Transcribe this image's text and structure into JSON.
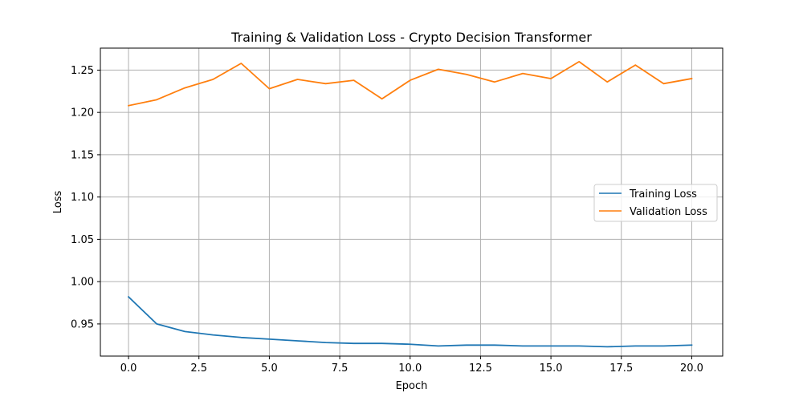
{
  "chart_data": {
    "type": "line",
    "title": "Training & Validation Loss - Crypto Decision Transformer",
    "xlabel": "Epoch",
    "ylabel": "Loss",
    "xlim": [
      -1,
      21.1
    ],
    "ylim": [
      0.912,
      1.276
    ],
    "grid": true,
    "legend_position": "center-right",
    "x_ticks": [
      0.0,
      2.5,
      5.0,
      7.5,
      10.0,
      12.5,
      15.0,
      17.5,
      20.0
    ],
    "x_tick_labels": [
      "0.0",
      "2.5",
      "5.0",
      "7.5",
      "10.0",
      "12.5",
      "15.0",
      "17.5",
      "20.0"
    ],
    "y_ticks": [
      0.95,
      1.0,
      1.05,
      1.1,
      1.15,
      1.2,
      1.25
    ],
    "y_tick_labels": [
      "0.95",
      "1.00",
      "1.05",
      "1.10",
      "1.15",
      "1.20",
      "1.25"
    ],
    "x": [
      0,
      1,
      2,
      3,
      4,
      5,
      6,
      7,
      8,
      9,
      10,
      11,
      12,
      13,
      14,
      15,
      16,
      17,
      18,
      19,
      20
    ],
    "series": [
      {
        "name": "Training Loss",
        "color": "#1f77b4",
        "values": [
          0.982,
          0.95,
          0.941,
          0.937,
          0.934,
          0.932,
          0.93,
          0.928,
          0.927,
          0.927,
          0.926,
          0.924,
          0.925,
          0.925,
          0.924,
          0.924,
          0.924,
          0.923,
          0.924,
          0.924,
          0.925
        ]
      },
      {
        "name": "Validation Loss",
        "color": "#ff7f0e",
        "values": [
          1.208,
          1.215,
          1.229,
          1.239,
          1.258,
          1.228,
          1.239,
          1.234,
          1.238,
          1.216,
          1.238,
          1.251,
          1.245,
          1.236,
          1.246,
          1.24,
          1.26,
          1.236,
          1.256,
          1.234,
          1.24
        ]
      }
    ]
  }
}
